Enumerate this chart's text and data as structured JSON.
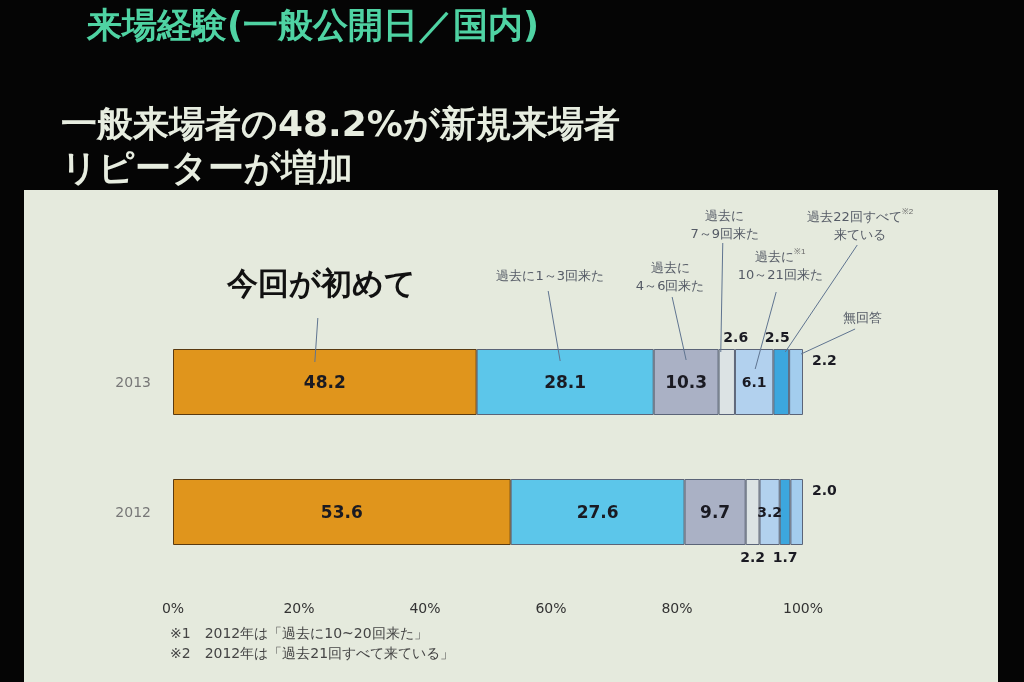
{
  "chart_data": {
    "type": "bar",
    "orientation": "horizontal",
    "stacked": true,
    "title": "来場経験(一般公開日／国内)",
    "subtitle": "一般来場者の48.2%が新規来場者リピーターが増加",
    "categories": [
      "2013",
      "2012"
    ],
    "series": [
      {
        "name": "今回が初めて",
        "color": "#e0951c",
        "values": [
          48.2,
          53.6
        ],
        "value_labels": [
          "48.2",
          "53.6"
        ]
      },
      {
        "name": "過去に1～3回来た",
        "color": "#5cc6ea",
        "values": [
          28.1,
          27.6
        ],
        "value_labels": [
          "28.1",
          "27.6"
        ]
      },
      {
        "name": "過去に\n4～6回来た",
        "color": "#aab1c5",
        "values": [
          10.3,
          9.7
        ],
        "value_labels": [
          "10.3",
          "9.7"
        ]
      },
      {
        "name": "過去に\n7～9回来た",
        "color": "#dce3e4",
        "values": [
          2.6,
          2.2
        ],
        "value_labels": [
          "2.6",
          "2.2"
        ]
      },
      {
        "name": "過去に$^{※1}$\n10～21回来た",
        "color": "#b2d1ee",
        "values": [
          6.1,
          3.2
        ],
        "value_labels": [
          "6.1",
          "3.2"
        ]
      },
      {
        "name": "過去22回すべて$^{※2}$\n来ている",
        "color": "#3ca7de",
        "values": [
          2.5,
          1.7
        ],
        "value_labels": [
          "2.5",
          "1.7"
        ]
      },
      {
        "name": "無回答",
        "color": "#a3cdee",
        "values": [
          2.2,
          2.0
        ],
        "value_labels": [
          "2.2",
          "2.0"
        ]
      }
    ],
    "xlim": [
      0,
      100
    ],
    "xticks": [
      {
        "value": 0,
        "label": "0%"
      },
      {
        "value": 20,
        "label": "20%"
      },
      {
        "value": 40,
        "label": "40%"
      },
      {
        "value": 60,
        "label": "60%"
      },
      {
        "value": 80,
        "label": "80%"
      },
      {
        "value": 100,
        "label": "100%"
      }
    ],
    "annotations": [
      "※1　2012年は「過去に10~20回来た」",
      "※2　2012年は「過去21回すべて来ている」"
    ]
  }
}
